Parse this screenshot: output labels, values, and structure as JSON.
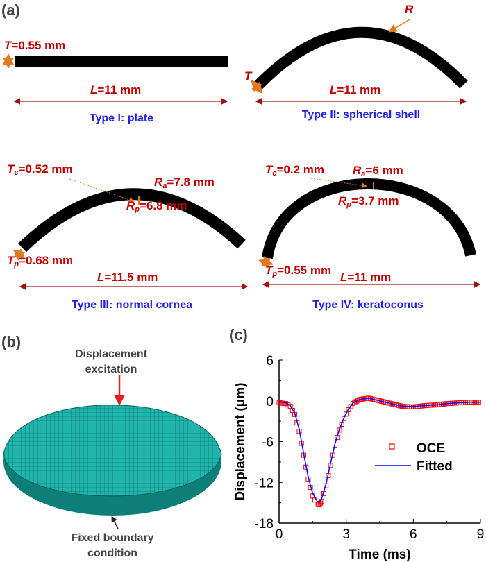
{
  "panels": {
    "a": "(a)",
    "b": "(b)",
    "c": "(c)"
  },
  "type1": {
    "caption": "Type I: plate",
    "thickness": {
      "sym": "T",
      "val": "=0.55 mm"
    },
    "length": {
      "sym": "L",
      "val": "=11 mm"
    }
  },
  "type2": {
    "caption": "Type II: spherical shell",
    "radius": {
      "sym": "R"
    },
    "thickness": {
      "sym": "T"
    },
    "length": {
      "sym": "L",
      "val": "=11 mm"
    }
  },
  "type3": {
    "caption": "Type III: normal cornea",
    "tc": {
      "sym": "T",
      "sub": "c",
      "val": "=0.52 mm"
    },
    "ra": {
      "sym": "R",
      "sub": "a",
      "val": "=7.8 mm"
    },
    "rp": {
      "sym": "R",
      "sub": "p",
      "val": "=6.8 mm"
    },
    "tp": {
      "sym": "T",
      "sub": "p",
      "val": "=0.68 mm"
    },
    "length": {
      "sym": "L",
      "val": "=11.5 mm"
    }
  },
  "type4": {
    "caption": "Type IV: keratoconus",
    "tc": {
      "sym": "T",
      "sub": "c",
      "val": "=0.2 mm"
    },
    "ra": {
      "sym": "R",
      "sub": "a",
      "val": "=6 mm"
    },
    "rp": {
      "sym": "R",
      "sub": "p",
      "val": "=3.7 mm"
    },
    "tp": {
      "sym": "T",
      "sub": "p",
      "val": "=0.55 mm"
    },
    "length": {
      "sym": "L",
      "val": "=11 mm"
    }
  },
  "model": {
    "top_label_1": "Displacement",
    "top_label_2": "excitation",
    "bottom_label_1": "Fixed boundary",
    "bottom_label_2": "condition",
    "mesh_color": "#1fb5ad"
  },
  "colors": {
    "label": "#c00000",
    "caption": "#2020e0",
    "arrow": "#e07a20",
    "dim_arrow": "#a01010"
  },
  "chart_data": {
    "type": "line",
    "xlabel": "Time (ms)",
    "ylabel": "Displacement (μm)",
    "xlim": [
      0,
      9
    ],
    "ylim": [
      -18,
      6
    ],
    "xticks": [
      "0",
      "3",
      "6",
      "9"
    ],
    "yticks": [
      "6",
      "0",
      "-6",
      "-12",
      "-18"
    ],
    "legend_position": "right",
    "series": [
      {
        "name": "OCE",
        "style": "red open squares",
        "color": "#ff0000",
        "x": [
          0,
          0.3,
          0.5,
          0.7,
          0.9,
          1.1,
          1.3,
          1.5,
          1.7,
          1.8,
          1.9,
          2.1,
          2.3,
          2.5,
          2.7,
          2.9,
          3.1,
          3.3,
          3.6,
          4.0,
          4.5,
          5.0,
          5.5,
          6.0,
          6.5,
          7.0,
          7.5,
          8.0,
          8.5,
          9.0
        ],
        "y": [
          -0.3,
          -0.4,
          -0.8,
          -2,
          -4.5,
          -8,
          -11.5,
          -14,
          -15.2,
          -15.3,
          -14.8,
          -12.5,
          -9.5,
          -6.5,
          -4.3,
          -2.6,
          -1.3,
          -0.4,
          0.2,
          0.4,
          0,
          -0.4,
          -0.8,
          -0.9,
          -0.7,
          -0.6,
          -0.4,
          -0.3,
          -0.2,
          -0.2
        ]
      },
      {
        "name": "Fitted",
        "style": "blue line",
        "color": "#0000ff",
        "x": [
          0,
          0.3,
          0.5,
          0.7,
          0.9,
          1.1,
          1.3,
          1.5,
          1.7,
          1.8,
          1.9,
          2.1,
          2.3,
          2.5,
          2.7,
          2.9,
          3.1,
          3.3,
          3.6,
          4.0,
          4.5,
          5.0,
          5.5,
          6.0,
          6.5,
          7.0,
          7.5,
          8.0,
          8.5,
          9.0
        ],
        "y": [
          -0.1,
          -0.3,
          -0.7,
          -1.8,
          -4.2,
          -7.8,
          -11.2,
          -13.6,
          -14.8,
          -14.9,
          -14.4,
          -12.2,
          -9.2,
          -6.3,
          -4.1,
          -2.5,
          -1.2,
          -0.3,
          0.2,
          0.4,
          0,
          -0.4,
          -0.8,
          -0.8,
          -0.7,
          -0.6,
          -0.4,
          -0.3,
          -0.2,
          -0.2
        ]
      }
    ]
  }
}
